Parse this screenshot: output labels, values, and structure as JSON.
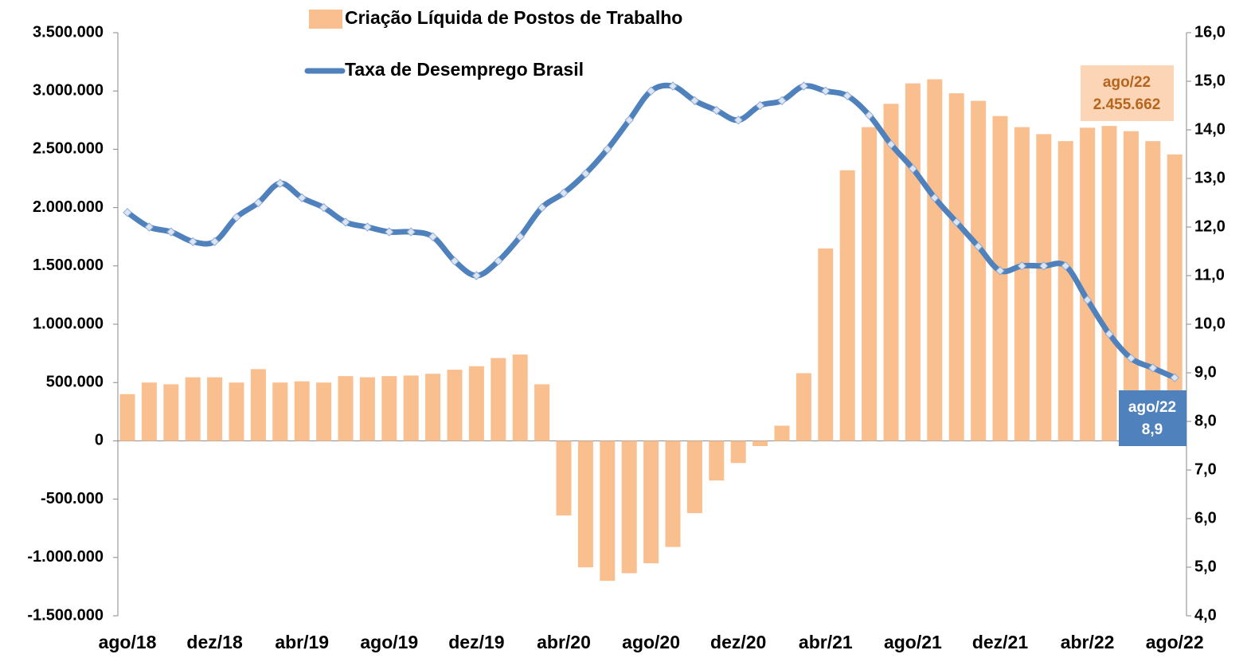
{
  "chart_data": {
    "type": "combo",
    "categories": [
      "ago/18",
      null,
      null,
      null,
      "dez/18",
      null,
      null,
      null,
      "abr/19",
      null,
      null,
      null,
      "ago/19",
      null,
      null,
      null,
      "dez/19",
      null,
      null,
      null,
      "abr/20",
      null,
      null,
      null,
      "ago/20",
      null,
      null,
      null,
      "dez/20",
      null,
      null,
      null,
      "abr/21",
      null,
      null,
      null,
      "ago/21",
      null,
      null,
      null,
      "dez/21",
      null,
      null,
      null,
      "abr/22",
      null,
      null,
      null,
      "ago/22"
    ],
    "series": [
      {
        "name": "Criação Líquida de Postos de Trabalho",
        "type": "bar",
        "color": "#f9bf8f",
        "values": [
          400000,
          500000,
          485000,
          545000,
          545000,
          500000,
          615000,
          500000,
          510000,
          500000,
          555000,
          545000,
          555000,
          560000,
          575000,
          610000,
          640000,
          710000,
          740000,
          485000,
          -640000,
          -1085000,
          -1200000,
          -1135000,
          -1050000,
          -910000,
          -620000,
          -340000,
          -190000,
          -45000,
          130000,
          580000,
          1650000,
          2320000,
          2690000,
          2890000,
          3065000,
          3100000,
          2980000,
          2915000,
          2785000,
          2690000,
          2630000,
          2570000,
          2685000,
          2700000,
          2655000,
          2570000,
          2455662
        ],
        "value_labels": [
          null,
          null,
          null,
          null,
          null,
          null,
          null,
          null,
          null,
          null,
          null,
          null,
          null,
          null,
          null,
          null,
          null,
          null,
          null,
          null,
          null,
          null,
          null,
          null,
          null,
          null,
          null,
          null,
          null,
          null,
          null,
          null,
          null,
          null,
          null,
          null,
          null,
          null,
          null,
          null,
          null,
          null,
          null,
          null,
          null,
          null,
          null,
          null,
          "2.455.662"
        ]
      },
      {
        "name": "Taxa de Desemprego Brasil",
        "type": "line",
        "axis": "y2",
        "color": "#4f81bd",
        "values": [
          12.3,
          12.0,
          11.9,
          11.7,
          11.7,
          12.2,
          12.5,
          12.9,
          12.6,
          12.4,
          12.1,
          12.0,
          11.9,
          11.9,
          11.8,
          11.3,
          11.0,
          11.3,
          11.8,
          12.4,
          12.7,
          13.1,
          13.6,
          14.2,
          14.8,
          14.9,
          14.6,
          14.4,
          14.2,
          14.5,
          14.6,
          14.9,
          14.8,
          14.7,
          14.3,
          13.7,
          13.2,
          12.6,
          12.1,
          11.6,
          11.1,
          11.2,
          11.2,
          11.2,
          10.5,
          9.8,
          9.3,
          9.1,
          8.9
        ],
        "value_labels": [
          null,
          null,
          null,
          null,
          null,
          null,
          null,
          null,
          null,
          null,
          null,
          null,
          null,
          null,
          null,
          null,
          null,
          null,
          null,
          null,
          null,
          null,
          null,
          null,
          null,
          null,
          null,
          null,
          null,
          null,
          null,
          null,
          null,
          null,
          null,
          null,
          null,
          null,
          null,
          null,
          null,
          null,
          null,
          null,
          null,
          null,
          null,
          null,
          "8,9"
        ]
      }
    ],
    "ylim": [
      -1500000,
      3500000
    ],
    "yticks": [
      {
        "value": -1500000,
        "label": "-1.500.000"
      },
      {
        "value": -1000000,
        "label": "-1.000.000"
      },
      {
        "value": -500000,
        "label": "-500.000"
      },
      0,
      {
        "value": 500000,
        "label": "500.000"
      },
      {
        "value": 1000000,
        "label": "1.000.000"
      },
      {
        "value": 1500000,
        "label": "1.500.000"
      },
      {
        "value": 2000000,
        "label": "2.000.000"
      },
      {
        "value": 2500000,
        "label": "2.500.000"
      },
      {
        "value": 3000000,
        "label": "3.000.000"
      },
      {
        "value": 3500000,
        "label": "3.500.000"
      }
    ],
    "y2lim": [
      4,
      16
    ],
    "y2ticks": [
      {
        "value": 4,
        "label": "4,0"
      },
      {
        "value": 5,
        "label": "5,0"
      },
      {
        "value": 6,
        "label": "6,0"
      },
      {
        "value": 7,
        "label": "7,0"
      },
      {
        "value": 8,
        "label": "8,0"
      },
      {
        "value": 9,
        "label": "9,0"
      },
      {
        "value": 10,
        "label": "10,0"
      },
      {
        "value": 11,
        "label": "11,0"
      },
      {
        "value": 12,
        "label": "12,0"
      },
      {
        "value": 13,
        "label": "13,0"
      },
      {
        "value": 14,
        "label": "14,0"
      },
      {
        "value": 15,
        "label": "15,0"
      },
      {
        "value": 16,
        "label": "16,0"
      }
    ],
    "grid": false
  }
}
